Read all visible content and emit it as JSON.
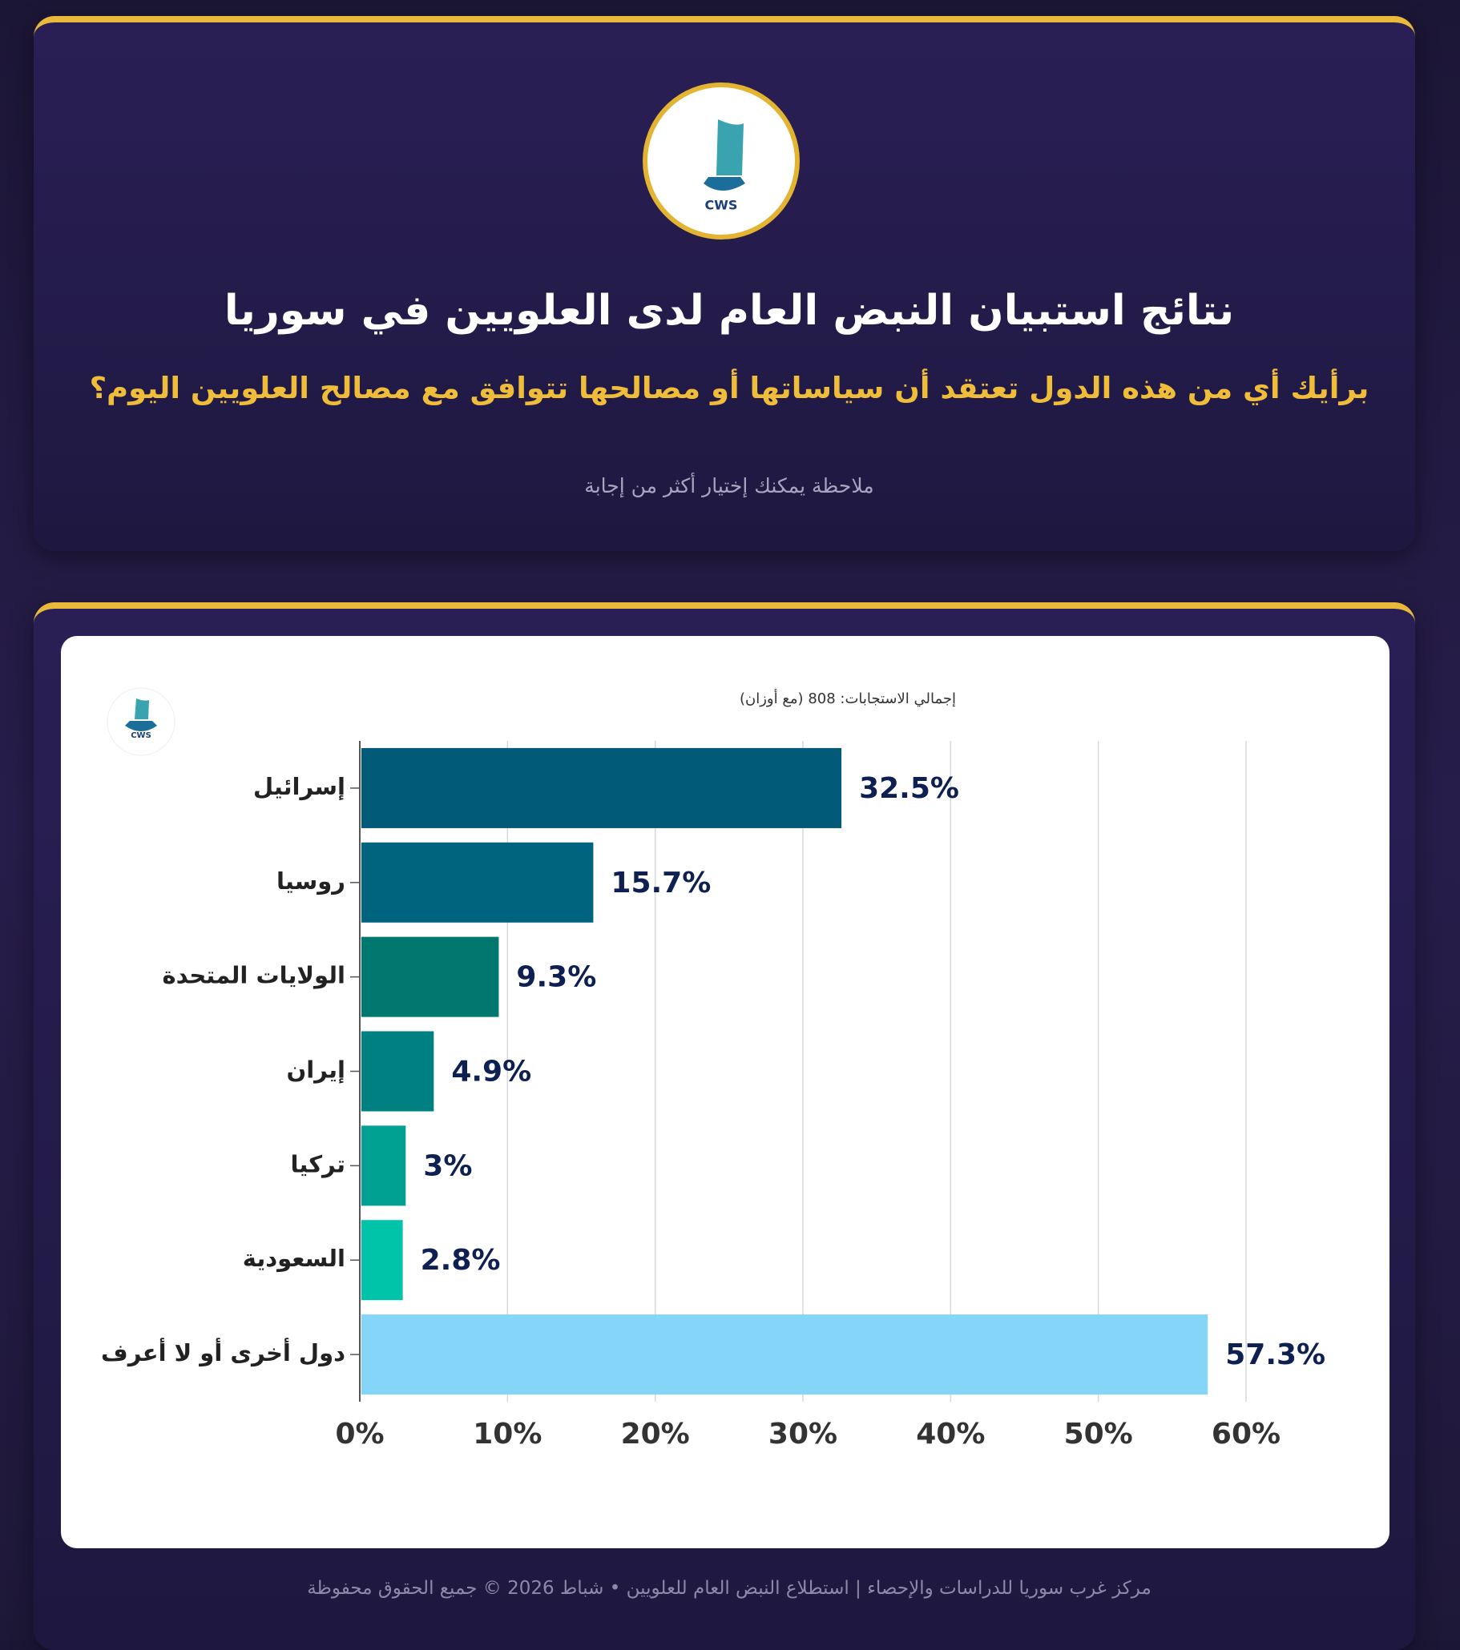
{
  "header": {
    "logo_text": "CWS",
    "title": "نتائج استبيان النبض العام لدى العلويين في سوريا",
    "question": "برأيك أي من هذه الدول تعتقد أن سياساتها أو مصالحها تتوافق مع مصالح العلويين اليوم؟",
    "note": "ملاحظة يمكنك إختيار أكثر من إجابة"
  },
  "chart_data": {
    "type": "bar",
    "orientation": "horizontal",
    "subtitle": "إجمالي الاستجابات: 808 (مع أوزان)",
    "categories": [
      "إسرائيل",
      "روسيا",
      "الولايات المتحدة",
      "إيران",
      "تركيا",
      "السعودية",
      "دول أخرى أو لا أعرف"
    ],
    "values": [
      32.5,
      15.7,
      9.3,
      4.9,
      3,
      2.8,
      57.3
    ],
    "value_labels": [
      "32.5%",
      "15.7%",
      "9.3%",
      "4.9%",
      "3%",
      "2.8%",
      "57.3%"
    ],
    "colors": [
      "#005a78",
      "#00647f",
      "#00776f",
      "#008080",
      "#00a192",
      "#00c4aa",
      "#84d5f8"
    ],
    "xlim": [
      0,
      60
    ],
    "xticks": [
      {
        "value": 0,
        "label": "0%"
      },
      {
        "value": 10,
        "label": "10%"
      },
      {
        "value": 20,
        "label": "20%"
      },
      {
        "value": 30,
        "label": "30%"
      },
      {
        "value": 40,
        "label": "40%"
      },
      {
        "value": 50,
        "label": "50%"
      },
      {
        "value": 60,
        "label": "60%"
      }
    ],
    "grid": true
  },
  "footer": "مركز غرب سوريا للدراسات والإحصاء | استطلاع النبض العام للعلويين • شباط 2026 © جميع الحقوق محفوظة"
}
